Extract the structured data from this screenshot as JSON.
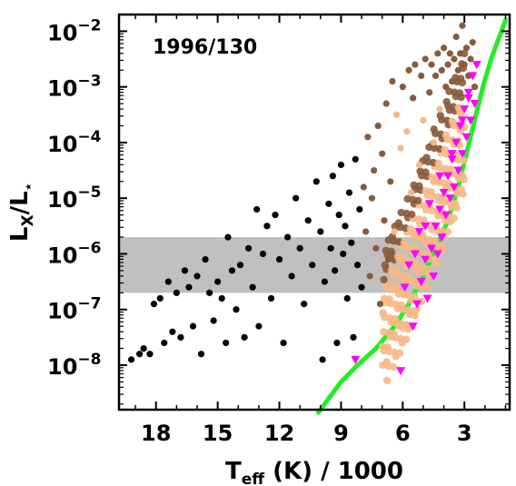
{
  "chart_data": {
    "type": "scatter",
    "annotation": "1996/130",
    "xlabel": {
      "main": "T",
      "sub": "eff",
      "rest": " (K) / 1000"
    },
    "ylabel": {
      "main": "L",
      "sub": "X",
      "mid": "/L",
      "sub2": "⋆"
    },
    "xlim": [
      19.8,
      0.8
    ],
    "ylim_log10": [
      -8.8,
      -1.7
    ],
    "x_ticks": [
      {
        "value": 18,
        "label": "18"
      },
      {
        "value": 15,
        "label": "15"
      },
      {
        "value": 12,
        "label": "12"
      },
      {
        "value": 9,
        "label": "9"
      },
      {
        "value": 6,
        "label": "6"
      },
      {
        "value": 3,
        "label": "3"
      }
    ],
    "y_ticks": [
      {
        "exp": -2,
        "base": "10",
        "sup": "−2"
      },
      {
        "exp": -3,
        "base": "10",
        "sup": "−3"
      },
      {
        "exp": -4,
        "base": "10",
        "sup": "−4"
      },
      {
        "exp": -5,
        "base": "10",
        "sup": "−5"
      },
      {
        "exp": -6,
        "base": "10",
        "sup": "−6"
      },
      {
        "exp": -7,
        "base": "10",
        "sup": "−7"
      },
      {
        "exp": -8,
        "base": "10",
        "sup": "−8"
      }
    ],
    "shaded_band": {
      "log_lo": -6.7,
      "log_hi": -5.7,
      "color": "#c0c0c0"
    },
    "colors": {
      "dark": "#000000",
      "mid": "#8a5a3a",
      "light": "#f7b886",
      "triangle": "#ff00ff",
      "curve": "#22ee22"
    },
    "series": [
      {
        "kind": "points",
        "marker": "circle",
        "points": [
          [
            19.2,
            -7.9
          ],
          [
            18.8,
            -7.8
          ],
          [
            18.6,
            -7.7
          ],
          [
            18.3,
            -7.8
          ],
          [
            18.1,
            -6.9
          ],
          [
            17.8,
            -6.8
          ],
          [
            17.6,
            -7.6
          ],
          [
            17.4,
            -6.5
          ],
          [
            17.2,
            -7.4
          ],
          [
            17.0,
            -6.7
          ],
          [
            16.8,
            -7.5
          ],
          [
            16.6,
            -6.3
          ],
          [
            16.4,
            -6.6
          ],
          [
            16.2,
            -7.3
          ],
          [
            16.0,
            -6.4
          ],
          [
            15.8,
            -7.8
          ],
          [
            15.6,
            -6.1
          ],
          [
            15.4,
            -6.7
          ],
          [
            15.2,
            -7.2
          ],
          [
            15.0,
            -6.5
          ],
          [
            14.8,
            -6.8
          ],
          [
            14.6,
            -7.6
          ],
          [
            14.5,
            -5.7
          ],
          [
            14.3,
            -6.3
          ],
          [
            14.1,
            -7.0
          ],
          [
            13.9,
            -6.2
          ],
          [
            13.7,
            -7.5
          ],
          [
            13.5,
            -5.9
          ],
          [
            13.3,
            -6.6
          ],
          [
            13.1,
            -5.2
          ],
          [
            13.0,
            -7.3
          ],
          [
            12.8,
            -6.0
          ],
          [
            12.6,
            -5.5
          ],
          [
            12.4,
            -6.8
          ],
          [
            12.2,
            -5.3
          ],
          [
            12.0,
            -6.1
          ],
          [
            11.8,
            -7.6
          ],
          [
            11.6,
            -5.7
          ],
          [
            11.4,
            -6.4
          ],
          [
            11.2,
            -5.0
          ],
          [
            11.0,
            -5.9
          ],
          [
            10.8,
            -6.9
          ],
          [
            10.6,
            -5.4
          ],
          [
            10.4,
            -6.2
          ],
          [
            10.2,
            -4.7
          ],
          [
            10.0,
            -5.6
          ],
          [
            9.9,
            -7.9
          ],
          [
            9.8,
            -6.5
          ],
          [
            9.6,
            -5.1
          ],
          [
            9.5,
            -5.9
          ],
          [
            9.4,
            -4.6
          ],
          [
            9.3,
            -6.3
          ],
          [
            9.2,
            -7.6
          ],
          [
            9.1,
            -5.3
          ],
          [
            9.0,
            -4.4
          ],
          [
            8.9,
            -6.0
          ],
          [
            8.8,
            -5.5
          ],
          [
            8.7,
            -6.8
          ],
          [
            8.6,
            -4.9
          ],
          [
            8.5,
            -5.8
          ],
          [
            8.4,
            -7.5
          ],
          [
            8.3,
            -4.3
          ],
          [
            8.2,
            -6.2
          ],
          [
            8.1,
            -5.2
          ],
          [
            8.0,
            -6.6
          ],
          [
            7.9,
            -4.8
          ],
          [
            7.8,
            -5.6
          ],
          [
            7.7,
            -3.9
          ],
          [
            7.6,
            -6.4
          ],
          [
            7.5,
            -5.0
          ],
          [
            7.4,
            -4.5
          ],
          [
            7.3,
            -5.9
          ],
          [
            7.2,
            -3.7
          ],
          [
            7.1,
            -6.9
          ],
          [
            7.0,
            -4.2
          ],
          [
            6.9,
            -5.4
          ],
          [
            6.8,
            -3.3
          ],
          [
            6.7,
            -6.1
          ],
          [
            6.6,
            -4.7
          ],
          [
            6.5,
            -2.9
          ],
          [
            6.4,
            -5.6
          ],
          [
            6.3,
            -3.5
          ],
          [
            6.2,
            -7.3
          ],
          [
            6.1,
            -4.1
          ],
          [
            6.0,
            -3.0
          ],
          [
            5.9,
            -6.5
          ],
          [
            5.8,
            -3.8
          ],
          [
            5.7,
            -2.7
          ],
          [
            5.6,
            -4.9
          ],
          [
            5.5,
            -3.2
          ],
          [
            5.4,
            -2.6
          ],
          [
            5.3,
            -7.0
          ],
          [
            5.2,
            -4.4
          ],
          [
            5.1,
            -2.8
          ],
          [
            5.0,
            -3.6
          ],
          [
            4.9,
            -2.5
          ],
          [
            4.8,
            -5.8
          ],
          [
            4.7,
            -3.1
          ],
          [
            4.6,
            -2.6
          ],
          [
            4.5,
            -4.0
          ],
          [
            4.4,
            -2.8
          ],
          [
            4.3,
            -2.4
          ],
          [
            4.2,
            -3.4
          ],
          [
            4.1,
            -2.7
          ],
          [
            4.0,
            -2.3
          ],
          [
            3.9,
            -3.0
          ],
          [
            3.8,
            -2.6
          ],
          [
            3.7,
            -2.4
          ],
          [
            3.6,
            -2.9
          ],
          [
            3.5,
            -2.5
          ],
          [
            3.4,
            -2.1
          ],
          [
            3.3,
            -2.7
          ],
          [
            3.2,
            -2.4
          ],
          [
            3.1,
            -1.9
          ],
          [
            3.0,
            -2.6
          ],
          [
            2.9,
            -2.3
          ],
          [
            2.8,
            -2.8
          ],
          [
            2.7,
            -2.5
          ],
          [
            2.6,
            -2.2
          ],
          [
            2.5,
            -3.0
          ]
        ]
      },
      {
        "kind": "points",
        "marker": "triangle",
        "points": [
          [
            8.3,
            -7.9
          ],
          [
            6.1,
            -8.1
          ],
          [
            5.5,
            -7.3
          ],
          [
            5.3,
            -6.9
          ],
          [
            5.1,
            -6.5
          ],
          [
            4.9,
            -6.1
          ],
          [
            4.8,
            -6.8
          ],
          [
            4.6,
            -5.9
          ],
          [
            4.5,
            -6.4
          ],
          [
            4.4,
            -5.5
          ],
          [
            4.3,
            -6.0
          ],
          [
            4.2,
            -5.2
          ],
          [
            4.1,
            -5.7
          ],
          [
            4.0,
            -4.9
          ],
          [
            3.9,
            -5.3
          ],
          [
            3.8,
            -4.6
          ],
          [
            3.7,
            -5.0
          ],
          [
            3.6,
            -4.3
          ],
          [
            3.5,
            -4.8
          ],
          [
            3.4,
            -4.0
          ],
          [
            3.3,
            -4.5
          ],
          [
            3.2,
            -3.7
          ],
          [
            3.1,
            -4.2
          ],
          [
            3.0,
            -3.4
          ],
          [
            2.9,
            -3.9
          ],
          [
            2.8,
            -3.1
          ],
          [
            2.7,
            -3.6
          ],
          [
            2.6,
            -2.8
          ],
          [
            2.5,
            -3.3
          ],
          [
            2.4,
            -2.6
          ],
          [
            5.7,
            -6.2
          ],
          [
            5.2,
            -5.6
          ],
          [
            4.7,
            -5.1
          ],
          [
            4.2,
            -4.6
          ],
          [
            3.6,
            -4.2
          ],
          [
            3.1,
            -3.6
          ],
          [
            2.8,
            -3.2
          ],
          [
            5.9,
            -6.6
          ],
          [
            5.4,
            -6.0
          ],
          [
            4.9,
            -5.5
          ]
        ]
      },
      {
        "kind": "line",
        "points": [
          [
            10.1,
            -8.85
          ],
          [
            9.6,
            -8.6
          ],
          [
            9.0,
            -8.3
          ],
          [
            8.2,
            -8.0
          ],
          [
            7.3,
            -7.7
          ],
          [
            6.4,
            -7.3
          ],
          [
            5.7,
            -6.9
          ],
          [
            5.0,
            -6.4
          ],
          [
            4.4,
            -5.9
          ],
          [
            3.8,
            -5.4
          ],
          [
            3.3,
            -4.8
          ],
          [
            2.9,
            -4.2
          ],
          [
            2.5,
            -3.6
          ],
          [
            2.1,
            -3.0
          ],
          [
            1.7,
            -2.5
          ],
          [
            1.3,
            -2.1
          ],
          [
            1.0,
            -1.8
          ]
        ]
      }
    ]
  }
}
